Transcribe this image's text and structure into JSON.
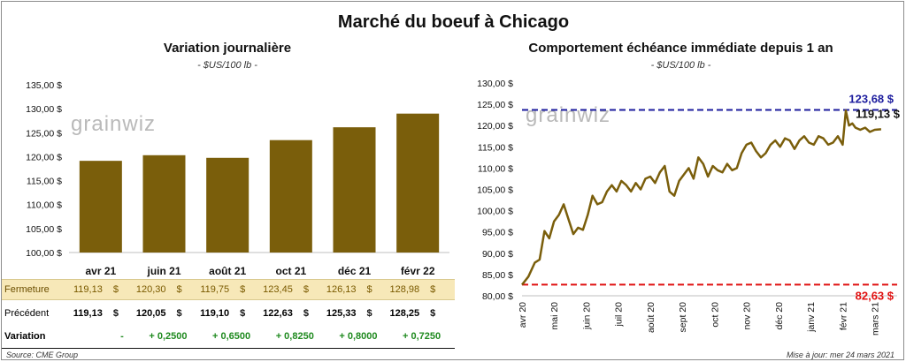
{
  "title": "Marché du boeuf à Chicago",
  "left": {
    "title": "Variation journalière",
    "unit": "- $US/100 lb -",
    "watermark": "grainwiz",
    "table": {
      "row_labels": {
        "fermeture": "Fermeture",
        "precedent": "Précédent",
        "variation": "Variation"
      },
      "currency": "$",
      "fermeture": [
        "119,13",
        "120,30",
        "119,75",
        "123,45",
        "126,13",
        "128,98"
      ],
      "precedent": [
        "119,13",
        "120,05",
        "119,10",
        "122,63",
        "125,33",
        "128,25"
      ],
      "variation": [
        "-",
        "+ 0,2500",
        "+ 0,6500",
        "+ 0,8250",
        "+ 0,8000",
        "+ 0,7250"
      ]
    }
  },
  "right": {
    "title": "Comportement échéance immédiate depuis 1 an",
    "unit": "- $US/100 lb -",
    "watermark": "grainwiz",
    "high_label": "123,68 $",
    "low_label": "82,63 $",
    "last_label": "119,13 $"
  },
  "footer": {
    "source": "Source: CME Group",
    "update": "Mise à jour: mer 24 mars 2021"
  },
  "colors": {
    "bar": "#7a5e0b",
    "line": "#7a5e0b",
    "high": "#1c1c9e",
    "low": "#e01010",
    "positive": "#1f8a1f",
    "fermeture_bg": "#f7e8b8"
  },
  "chart_data": [
    {
      "type": "bar",
      "title": "Variation journalière",
      "ylabel": "$US/100 lb",
      "categories": [
        "avr 21",
        "juin 21",
        "août 21",
        "oct 21",
        "déc 21",
        "févr 22"
      ],
      "values": [
        119.13,
        120.3,
        119.75,
        123.45,
        126.13,
        128.98
      ],
      "ylim": [
        100,
        135
      ],
      "yticks": [
        "100,00 $",
        "105,00 $",
        "110,00 $",
        "115,00 $",
        "120,00 $",
        "125,00 $",
        "130,00 $",
        "135,00 $"
      ],
      "grid": false
    },
    {
      "type": "line",
      "title": "Comportement échéance immédiate depuis 1 an",
      "ylabel": "$US/100 lb",
      "ylim": [
        80,
        130
      ],
      "yticks": [
        "80,00 $",
        "85,00 $",
        "90,00 $",
        "95,00 $",
        "100,00 $",
        "105,00 $",
        "110,00 $",
        "115,00 $",
        "120,00 $",
        "125,00 $",
        "130,00 $"
      ],
      "xticks": [
        "avr 20",
        "mai 20",
        "juin 20",
        "juil 20",
        "août 20",
        "sept 20",
        "oct 20",
        "nov 20",
        "déc 20",
        "janv 21",
        "févr 21",
        "mars 21"
      ],
      "reference_lines": [
        {
          "name": "haut",
          "value": 123.68
        },
        {
          "name": "bas",
          "value": 82.63
        }
      ],
      "series": [
        {
          "x": [
            0,
            0.2,
            0.4,
            0.55,
            0.7,
            0.85,
            1.0,
            1.15,
            1.3,
            1.45,
            1.6,
            1.75,
            1.9,
            2.05,
            2.2,
            2.35,
            2.5,
            2.65,
            2.8,
            2.95,
            3.1,
            3.25,
            3.4,
            3.55,
            3.7,
            3.85,
            4.0,
            4.15,
            4.3,
            4.45,
            4.6,
            4.75,
            4.9,
            5.05,
            5.2,
            5.35,
            5.5,
            5.65,
            5.8,
            5.95,
            6.1,
            6.25,
            6.4,
            6.55,
            6.7,
            6.85,
            7.0,
            7.15,
            7.3,
            7.45,
            7.6,
            7.75,
            7.9,
            8.05,
            8.2,
            8.35,
            8.5,
            8.65,
            8.8,
            8.95,
            9.1,
            9.25,
            9.4,
            9.55,
            9.7,
            9.85,
            10.0,
            10.1,
            10.2,
            10.3,
            10.4,
            10.55,
            10.7,
            10.85,
            11.0,
            11.2
          ],
          "values": [
            82.6,
            84.5,
            87.8,
            88.5,
            95.2,
            93.5,
            97.5,
            99.0,
            101.5,
            98.0,
            94.5,
            96.0,
            95.5,
            99.0,
            103.5,
            101.5,
            102.0,
            104.5,
            106.0,
            104.5,
            107.0,
            106.0,
            104.5,
            106.5,
            105.0,
            107.5,
            108.0,
            106.5,
            109.0,
            110.5,
            104.5,
            103.5,
            107.0,
            108.5,
            110.0,
            107.5,
            112.5,
            111.0,
            108.0,
            110.5,
            109.5,
            109.0,
            111.0,
            109.5,
            110.0,
            113.5,
            115.5,
            116.0,
            114.0,
            112.5,
            113.5,
            115.5,
            116.5,
            115.0,
            117.0,
            116.5,
            114.5,
            116.5,
            117.5,
            116.0,
            115.5,
            117.5,
            117.0,
            115.5,
            116.0,
            117.5,
            115.5,
            123.5,
            120.0,
            120.5,
            119.5,
            119.0,
            119.5,
            118.5,
            119.0,
            119.13
          ]
        }
      ]
    }
  ]
}
